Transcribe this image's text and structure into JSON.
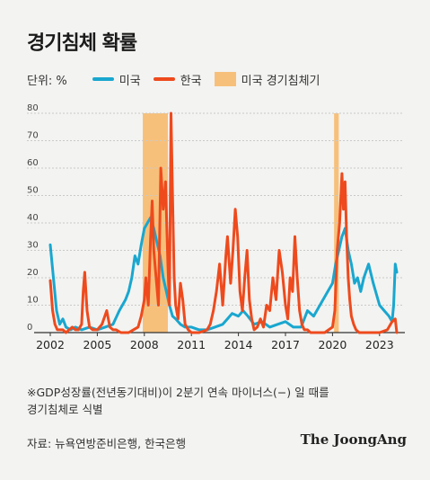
{
  "header": {
    "title": "경기침체 확률"
  },
  "legend": {
    "unit": "단위: %",
    "us_label": "미국",
    "kr_label": "한국",
    "recession_label": "미국 경기침체기"
  },
  "colors": {
    "us": "#19a7cf",
    "kr": "#ee4a1d",
    "recession": "#f7c07a",
    "grid": "#c9c9c9",
    "axis": "#333333"
  },
  "chart_data": {
    "type": "line",
    "xlim": [
      2002,
      2024.5
    ],
    "ylim": [
      0,
      80
    ],
    "yticks": [
      0,
      10,
      20,
      30,
      40,
      50,
      60,
      70,
      80
    ],
    "xticks": [
      2002,
      2005,
      2008,
      2011,
      2014,
      2017,
      2020,
      2023
    ],
    "grid": "horizontal dotted",
    "legend_position": "top-left",
    "recession_periods": [
      [
        2007.9,
        2009.5
      ],
      [
        2020.1,
        2020.4
      ]
    ],
    "series": [
      {
        "name": "미국",
        "color": "#19a7cf",
        "x": [
          2002.0,
          2002.2,
          2002.4,
          2002.6,
          2002.8,
          2003.0,
          2003.3,
          2003.6,
          2004.0,
          2004.5,
          2005.0,
          2005.5,
          2006.0,
          2006.4,
          2006.8,
          2007.0,
          2007.2,
          2007.4,
          2007.6,
          2007.8,
          2008.0,
          2008.2,
          2008.4,
          2008.6,
          2008.8,
          2009.0,
          2009.2,
          2009.4,
          2009.6,
          2009.8,
          2010.0,
          2010.3,
          2010.6,
          2011.0,
          2011.5,
          2012.0,
          2012.5,
          2013.0,
          2013.3,
          2013.6,
          2014.0,
          2014.3,
          2014.6,
          2015.0,
          2015.5,
          2016.0,
          2016.5,
          2017.0,
          2017.5,
          2018.0,
          2018.4,
          2018.8,
          2019.2,
          2019.6,
          2020.0,
          2020.2,
          2020.4,
          2020.6,
          2020.8,
          2021.0,
          2021.2,
          2021.4,
          2021.6,
          2021.8,
          2022.0,
          2022.3,
          2022.6,
          2023.0,
          2023.3,
          2023.6,
          2023.8,
          2023.9,
          2024.0,
          2024.1
        ],
        "values": [
          32,
          20,
          8,
          3,
          5,
          2,
          1,
          2,
          1,
          2,
          1,
          2,
          3,
          8,
          12,
          15,
          20,
          28,
          25,
          32,
          38,
          40,
          42,
          38,
          33,
          28,
          20,
          15,
          10,
          6,
          5,
          3,
          2,
          2,
          1,
          1,
          2,
          3,
          5,
          7,
          6,
          8,
          6,
          3,
          4,
          2,
          3,
          4,
          2,
          2,
          8,
          6,
          10,
          14,
          18,
          25,
          30,
          35,
          38,
          30,
          25,
          18,
          20,
          15,
          20,
          25,
          18,
          10,
          8,
          6,
          4,
          10,
          25,
          22
        ]
      },
      {
        "name": "한국",
        "color": "#ee4a1d",
        "x": [
          2002.0,
          2002.15,
          2002.3,
          2002.45,
          2002.6,
          2002.8,
          2003.0,
          2003.2,
          2003.4,
          2003.6,
          2003.8,
          2004.0,
          2004.1,
          2004.2,
          2004.35,
          2004.5,
          2004.7,
          2005.0,
          2005.3,
          2005.6,
          2005.8,
          2006.0,
          2006.2,
          2006.5,
          2007.0,
          2007.3,
          2007.6,
          2007.8,
          2008.0,
          2008.1,
          2008.25,
          2008.4,
          2008.5,
          2008.6,
          2008.75,
          2008.9,
          2009.05,
          2009.2,
          2009.35,
          2009.5,
          2009.6,
          2009.7,
          2009.8,
          2009.9,
          2010.0,
          2010.15,
          2010.3,
          2010.45,
          2010.6,
          2010.8,
          2011.0,
          2011.5,
          2012.0,
          2012.2,
          2012.4,
          2012.6,
          2012.8,
          2013.0,
          2013.2,
          2013.3,
          2013.5,
          2013.65,
          2013.8,
          2013.95,
          2014.1,
          2014.25,
          2014.4,
          2014.55,
          2014.7,
          2014.85,
          2015.0,
          2015.2,
          2015.4,
          2015.6,
          2015.8,
          2016.0,
          2016.2,
          2016.4,
          2016.6,
          2016.8,
          2017.0,
          2017.15,
          2017.3,
          2017.45,
          2017.6,
          2017.75,
          2017.9,
          2018.05,
          2018.2,
          2018.4,
          2018.6,
          2019.0,
          2019.5,
          2020.0,
          2020.15,
          2020.3,
          2020.45,
          2020.6,
          2020.7,
          2020.8,
          2020.9,
          2021.0,
          2021.1,
          2021.2,
          2021.35,
          2021.5,
          2021.7,
          2022.0,
          2022.5,
          2023.0,
          2023.5,
          2023.8,
          2024.0,
          2024.1
        ],
        "values": [
          19,
          8,
          3,
          1,
          1,
          1,
          0,
          1,
          2,
          1,
          1,
          3,
          15,
          22,
          8,
          2,
          1,
          1,
          3,
          8,
          2,
          1,
          1,
          0,
          0,
          1,
          2,
          6,
          12,
          20,
          10,
          35,
          48,
          30,
          20,
          10,
          60,
          45,
          55,
          25,
          10,
          80,
          50,
          20,
          10,
          5,
          18,
          12,
          3,
          1,
          0,
          0,
          1,
          3,
          8,
          15,
          25,
          10,
          28,
          35,
          18,
          30,
          45,
          35,
          15,
          8,
          20,
          30,
          12,
          5,
          1,
          2,
          5,
          2,
          10,
          8,
          20,
          12,
          30,
          22,
          10,
          5,
          20,
          15,
          35,
          20,
          8,
          3,
          1,
          1,
          0,
          0,
          0,
          2,
          8,
          30,
          40,
          58,
          45,
          55,
          35,
          20,
          12,
          6,
          3,
          1,
          0,
          0,
          0,
          0,
          1,
          4,
          5,
          0
        ]
      }
    ]
  },
  "note": {
    "line1": "※GDP성장률(전년동기대비)이 2분기 연속 마이너스(−) 일 때를",
    "line2": "경기침체로 식별"
  },
  "source": "자료: 뉴욕연방준비은행, 한국은행",
  "brand": "The JoongAng"
}
